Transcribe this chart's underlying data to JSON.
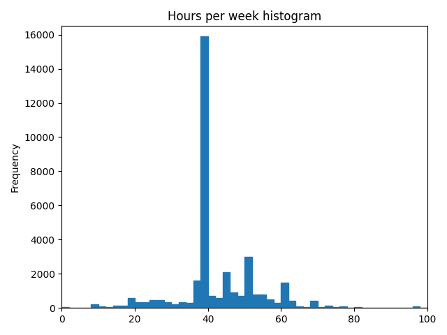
{
  "title": "Hours per week histogram",
  "ylabel": "Frequency",
  "xlabel": "",
  "bar_color": "#2077b4",
  "bin_edges": [
    0,
    2,
    4,
    6,
    8,
    10,
    12,
    14,
    16,
    18,
    20,
    22,
    24,
    26,
    28,
    30,
    32,
    34,
    36,
    38,
    40,
    42,
    44,
    46,
    48,
    50,
    52,
    54,
    56,
    58,
    60,
    62,
    64,
    66,
    68,
    70,
    72,
    74,
    76,
    78,
    80,
    82,
    84,
    86,
    88,
    90,
    92,
    94,
    96,
    98,
    100
  ],
  "frequencies": [
    50,
    0,
    0,
    0,
    200,
    100,
    50,
    150,
    150,
    600,
    350,
    350,
    450,
    450,
    350,
    200,
    350,
    300,
    1600,
    15900,
    700,
    600,
    2100,
    900,
    700,
    3000,
    800,
    800,
    500,
    300,
    1500,
    400,
    100,
    50,
    400,
    50,
    150,
    50,
    100,
    0,
    50,
    0,
    0,
    0,
    0,
    0,
    0,
    0,
    100,
    0
  ],
  "xlim": [
    0,
    100
  ],
  "ylim": [
    0,
    16500
  ],
  "figsize": [
    6.4,
    4.8
  ],
  "dpi": 100
}
